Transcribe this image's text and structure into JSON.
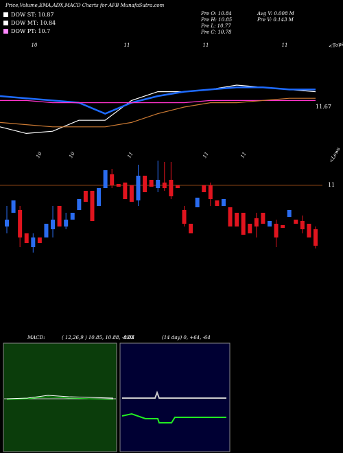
{
  "header": {
    "title": "Price,Volume,EMA,ADX,MACD Charts for AFB MunafaSutra.com",
    "dow": [
      "DOW ST: 10.87",
      "DOW MT: 10.84",
      "DOW PT: 10.7"
    ],
    "pre": [
      "Pre  O: 10.84",
      "Pre  H: 10.85",
      "Pre  L: 10.77",
      "Pre  C: 10.78"
    ],
    "vol": [
      "Avg V: 0.008  M",
      "Pre  V: 0.143 M"
    ]
  },
  "chart_data": [
    {
      "type": "line",
      "name": "ema",
      "top_labels": [
        "10",
        "11",
        "11",
        "11",
        "<Tops"
      ],
      "ylim": [
        11.47,
        11.97
      ],
      "yticks": [
        11.67
      ],
      "series": [
        {
          "name": "price",
          "color": "#ffffff",
          "values": [
            11.58,
            11.55,
            11.56,
            11.61,
            11.61,
            11.7,
            11.74,
            11.74,
            11.75,
            11.77,
            11.76,
            11.75,
            11.74
          ]
        },
        {
          "name": "ema-fast",
          "color": "#1e6bff",
          "values": [
            11.72,
            11.71,
            11.7,
            11.69,
            11.64,
            11.69,
            11.72,
            11.74,
            11.75,
            11.76,
            11.76,
            11.75,
            11.75
          ]
        },
        {
          "name": "ema-long",
          "color": "#ff33cc",
          "values": [
            11.7,
            11.7,
            11.69,
            11.69,
            11.69,
            11.69,
            11.69,
            11.69,
            11.7,
            11.7,
            11.7,
            11.7,
            11.7
          ]
        },
        {
          "name": "ema-slow",
          "color": "#cc7a33",
          "values": [
            11.6,
            11.59,
            11.58,
            11.58,
            11.58,
            11.6,
            11.64,
            11.67,
            11.69,
            11.69,
            11.7,
            11.71,
            11.71
          ]
        }
      ]
    },
    {
      "type": "candlestick",
      "name": "price",
      "bottom_labels": [
        "10",
        "10",
        "11",
        "11",
        "11",
        "<Lows"
      ],
      "up_color": "#2a6cf0",
      "down_color": "#e0141e",
      "ylim": [
        10.725,
        11.1
      ],
      "yticks": [
        11
      ],
      "open": [
        10.85,
        10.9,
        10.91,
        10.825,
        10.775,
        10.81,
        10.81,
        10.84,
        10.925,
        10.85,
        10.875,
        10.91,
        10.98,
        10.98,
        10.925,
        10.99,
        11.04,
        11.005,
        11.01,
        11.0,
        10.945,
        11.035,
        11.02,
        10.99,
        11.01,
        11.02,
        11.0,
        10.91,
        10.86,
        10.92,
        11.0,
        11.0,
        10.945,
        10.925,
        10.92,
        10.9,
        10.9,
        10.86,
        10.88,
        10.9,
        10.85,
        10.86,
        10.855,
        10.885,
        10.875,
        10.87,
        10.86,
        10.84
      ],
      "high": [
        10.925,
        10.945,
        10.925,
        10.825,
        10.825,
        10.81,
        10.86,
        10.925,
        10.925,
        10.9,
        10.9,
        10.95,
        10.98,
        10.98,
        10.99,
        11.055,
        11.06,
        11.005,
        11.01,
        11.0,
        11.075,
        11.035,
        11.02,
        11.09,
        11.085,
        11.085,
        11.0,
        10.925,
        10.86,
        10.955,
        11.0,
        11.01,
        10.945,
        10.95,
        10.92,
        10.9,
        10.9,
        10.86,
        10.9,
        10.9,
        10.87,
        10.875,
        10.855,
        10.91,
        10.875,
        10.89,
        10.86,
        10.85
      ],
      "low": [
        10.825,
        10.9,
        10.775,
        10.79,
        10.755,
        10.79,
        10.81,
        10.81,
        10.85,
        10.84,
        10.875,
        10.91,
        10.94,
        10.87,
        10.925,
        10.99,
        10.99,
        10.995,
        10.95,
        10.94,
        10.925,
        10.975,
        10.995,
        10.975,
        10.98,
        10.95,
        10.99,
        10.85,
        10.825,
        10.92,
        10.975,
        10.925,
        10.925,
        10.925,
        10.85,
        10.85,
        10.82,
        10.825,
        10.81,
        10.86,
        10.85,
        10.775,
        10.845,
        10.885,
        10.86,
        10.825,
        10.81,
        10.77
      ],
      "close": [
        10.875,
        10.945,
        10.81,
        10.79,
        10.81,
        10.79,
        10.86,
        10.875,
        10.85,
        10.875,
        10.9,
        10.95,
        10.94,
        10.87,
        10.99,
        11.055,
        11.0,
        10.995,
        10.95,
        10.94,
        11.035,
        10.975,
        10.995,
        11.02,
        10.99,
        10.96,
        10.99,
        10.86,
        10.825,
        10.955,
        10.975,
        10.95,
        10.925,
        10.95,
        10.85,
        10.85,
        10.82,
        10.825,
        10.85,
        10.86,
        10.87,
        10.81,
        10.845,
        10.91,
        10.86,
        10.84,
        10.81,
        10.78
      ]
    },
    {
      "type": "macd",
      "name": "macd",
      "title": "MACD:",
      "subtitle": "( 12,26,9 ) 10.85, 10.88, -0.03"
    },
    {
      "type": "adx",
      "name": "adx",
      "title": "ADX",
      "subtitle": "(14 day) 0, +64, -64"
    }
  ]
}
